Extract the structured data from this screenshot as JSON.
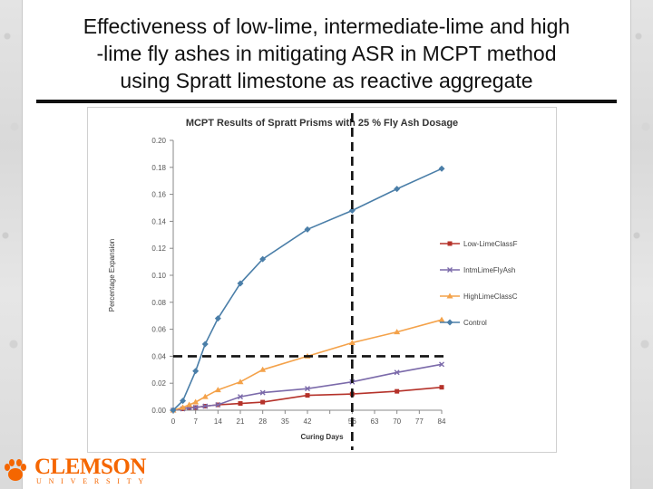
{
  "slide": {
    "title_lines": [
      "Effectiveness of low-lime, intermediate-lime and high",
      "-lime fly ashes in mitigating ASR in MCPT method",
      "using Spratt limestone as reactive aggregate"
    ]
  },
  "logo": {
    "name": "CLEMSON",
    "sub": "UNIVERSITY"
  },
  "colors": {
    "LowLimeClassF": "#b5322a",
    "IntmLimeFlyAsh": "#7b6aaa",
    "HighLimeClassC": "#f4a24a",
    "Control": "#4a7ea8",
    "accent": "#f56600"
  },
  "chart_data": {
    "type": "line",
    "title": "MCPT Results of Spratt Prisms with 25 % Fly Ash Dosage",
    "xlabel": "Curing Days",
    "ylabel": "Percentage Expansion",
    "x_ticks": [
      0,
      7,
      14,
      21,
      28,
      35,
      42,
      49,
      56,
      63,
      70,
      77,
      84
    ],
    "x_ticks_labels": [
      "0",
      "7",
      "14",
      "21",
      "28",
      "35",
      "42",
      "",
      "56",
      "63",
      "70",
      "77",
      "84"
    ],
    "y_ticks": [
      "0.00",
      "0.02",
      "0.04",
      "0.06",
      "0.08",
      "0.10",
      "0.12",
      "0.14",
      "0.16",
      "0.18",
      "0.20"
    ],
    "xlim": [
      0,
      84
    ],
    "ylim": [
      0,
      0.2
    ],
    "grid": false,
    "legend_position": "right",
    "series": [
      {
        "name": "Low-LimeClassF",
        "color": "#b5322a",
        "marker": "square",
        "x": [
          0,
          3,
          5,
          7,
          10,
          14,
          21,
          28,
          42,
          56,
          70,
          84
        ],
        "y": [
          0.0,
          0.001,
          0.002,
          0.002,
          0.003,
          0.004,
          0.005,
          0.006,
          0.011,
          0.012,
          0.014,
          0.017
        ]
      },
      {
        "name": "IntmLimeFlyAsh",
        "color": "#7b6aaa",
        "marker": "x",
        "x": [
          0,
          3,
          5,
          7,
          10,
          14,
          21,
          28,
          42,
          56,
          70,
          84
        ],
        "y": [
          0.0,
          0.001,
          0.002,
          0.002,
          0.003,
          0.004,
          0.01,
          0.013,
          0.016,
          0.021,
          0.028,
          0.034
        ]
      },
      {
        "name": "HighLimeClassC",
        "color": "#f4a24a",
        "marker": "triangle",
        "x": [
          0,
          3,
          5,
          7,
          10,
          14,
          21,
          28,
          42,
          56,
          70,
          84
        ],
        "y": [
          0.0,
          0.002,
          0.004,
          0.006,
          0.01,
          0.015,
          0.021,
          0.03,
          0.04,
          0.05,
          0.058,
          0.067
        ]
      },
      {
        "name": "Control",
        "color": "#4a7ea8",
        "marker": "diamond",
        "x": [
          0,
          3,
          7,
          10,
          14,
          21,
          28,
          42,
          56,
          70,
          84
        ],
        "y": [
          0.0,
          0.007,
          0.029,
          0.049,
          0.068,
          0.094,
          0.112,
          0.134,
          0.148,
          0.164,
          0.179
        ]
      }
    ],
    "reference_lines": [
      {
        "type": "vertical",
        "x": 56
      },
      {
        "type": "horizontal",
        "y": 0.04
      }
    ]
  }
}
